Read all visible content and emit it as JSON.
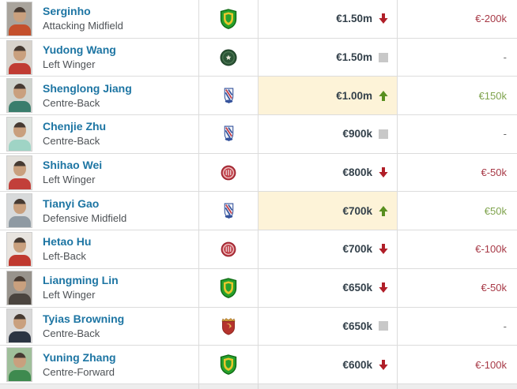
{
  "colors": {
    "link": "#1d75a3",
    "row_border": "#dcdcdc",
    "highlight_bg": "#fdf3d8",
    "arrow_down": "#b01e28",
    "arrow_up": "#588f1f",
    "neutral_square": "#c8c8c8",
    "negative_text": "#a73946",
    "positive_text": "#7fa34d"
  },
  "table": {
    "rows": [
      {
        "name": "Serginho",
        "position": "Attacking Midfield",
        "club_badge": "green-shield-badge",
        "market_value": "€1.50m",
        "trend": "down",
        "change": "€-200k",
        "change_type": "negative",
        "value_highlight": false,
        "photo": {
          "bg": "#a9a49c",
          "shirt": "#c4502c"
        }
      },
      {
        "name": "Yudong Wang",
        "position": "Left Winger",
        "club_badge": "dark-green-circle-badge",
        "market_value": "€1.50m",
        "trend": "none",
        "change": "-",
        "change_type": "neutral",
        "value_highlight": false,
        "photo": {
          "bg": "#d8d3cc",
          "shirt": "#c03b33"
        }
      },
      {
        "name": "Shenglong Jiang",
        "position": "Centre-Back",
        "club_badge": "blue-red-crest-badge",
        "market_value": "€1.00m",
        "trend": "up",
        "change": "€150k",
        "change_type": "positive",
        "value_highlight": true,
        "photo": {
          "bg": "#cfd3cd",
          "shirt": "#3a7d6c"
        }
      },
      {
        "name": "Chenjie Zhu",
        "position": "Centre-Back",
        "club_badge": "blue-red-crest-badge",
        "market_value": "€900k",
        "trend": "none",
        "change": "-",
        "change_type": "neutral",
        "value_highlight": false,
        "photo": {
          "bg": "#dfe4e0",
          "shirt": "#9fd4c5"
        }
      },
      {
        "name": "Shihao Wei",
        "position": "Left Winger",
        "club_badge": "red-circle-badge",
        "market_value": "€800k",
        "trend": "down",
        "change": "€-50k",
        "change_type": "negative",
        "value_highlight": false,
        "photo": {
          "bg": "#e3e0db",
          "shirt": "#c23f3a"
        }
      },
      {
        "name": "Tianyi Gao",
        "position": "Defensive Midfield",
        "club_badge": "blue-red-crest-badge",
        "market_value": "€700k",
        "trend": "up",
        "change": "€50k",
        "change_type": "positive",
        "value_highlight": true,
        "photo": {
          "bg": "#d8dadb",
          "shirt": "#8f9aa3"
        }
      },
      {
        "name": "Hetao Hu",
        "position": "Left-Back",
        "club_badge": "red-circle-badge",
        "market_value": "€700k",
        "trend": "down",
        "change": "€-100k",
        "change_type": "negative",
        "value_highlight": false,
        "photo": {
          "bg": "#e8e4df",
          "shirt": "#c0392f"
        }
      },
      {
        "name": "Liangming Lin",
        "position": "Left Winger",
        "club_badge": "green-shield-badge",
        "market_value": "€650k",
        "trend": "down",
        "change": "€-50k",
        "change_type": "negative",
        "value_highlight": false,
        "photo": {
          "bg": "#98938c",
          "shirt": "#4a443e"
        }
      },
      {
        "name": "Tyias Browning",
        "position": "Centre-Back",
        "club_badge": "red-gold-shield-badge",
        "market_value": "€650k",
        "trend": "none",
        "change": "-",
        "change_type": "neutral",
        "value_highlight": false,
        "photo": {
          "bg": "#d9d9d9",
          "shirt": "#2b3442"
        }
      },
      {
        "name": "Yuning Zhang",
        "position": "Centre-Forward",
        "club_badge": "green-shield-badge",
        "market_value": "€600k",
        "trend": "down",
        "change": "€-100k",
        "change_type": "negative",
        "value_highlight": false,
        "photo": {
          "bg": "#9fbf9a",
          "shirt": "#3e8a4f"
        }
      }
    ]
  }
}
